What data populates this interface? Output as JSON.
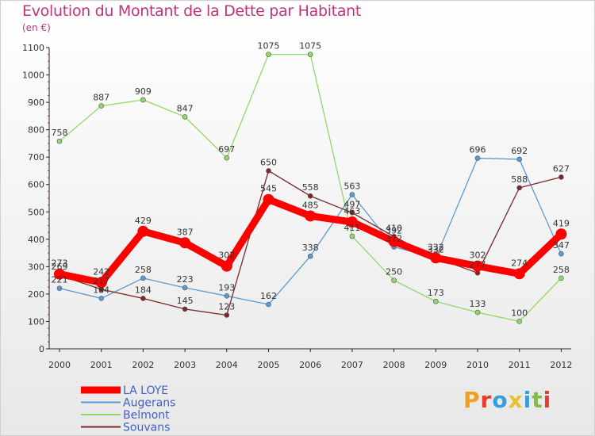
{
  "chart_data": {
    "type": "line",
    "title": "Evolution du Montant de la Dette par Habitant",
    "subtitle": "(en €)",
    "categories": [
      "2000",
      "2001",
      "2002",
      "2003",
      "2004",
      "2005",
      "2006",
      "2007",
      "2008",
      "2009",
      "2010",
      "2011",
      "2012"
    ],
    "yticks": [
      0,
      100,
      200,
      300,
      400,
      500,
      600,
      700,
      800,
      900,
      1000,
      1100
    ],
    "ylim": [
      0,
      1100
    ],
    "grid": false,
    "legend_position": "bottom-left",
    "series": [
      {
        "name": "LA LOYE",
        "color": "#ff0000",
        "width": 9,
        "values": [
          273,
          242,
          429,
          387,
          302,
          545,
          485,
          463,
          392,
          332,
          302,
          274,
          419
        ]
      },
      {
        "name": "Augerans",
        "color": "#5a9bd4",
        "width": 1.3,
        "values": [
          221,
          184,
          258,
          223,
          193,
          162,
          338,
          563,
          372,
          332,
          696,
          692,
          347
        ]
      },
      {
        "name": "Belmont",
        "color": "#8fd96a",
        "width": 1.3,
        "values": [
          758,
          887,
          909,
          847,
          697,
          1075,
          1075,
          411,
          250,
          173,
          133,
          100,
          258
        ]
      },
      {
        "name": "Souvans",
        "color": "#7a2828",
        "width": 1.3,
        "values": [
          269,
          217,
          184,
          145,
          123,
          650,
          558,
          497,
          410,
          332,
          277,
          588,
          627
        ]
      }
    ]
  },
  "logo": {
    "text": "Proxiti"
  }
}
